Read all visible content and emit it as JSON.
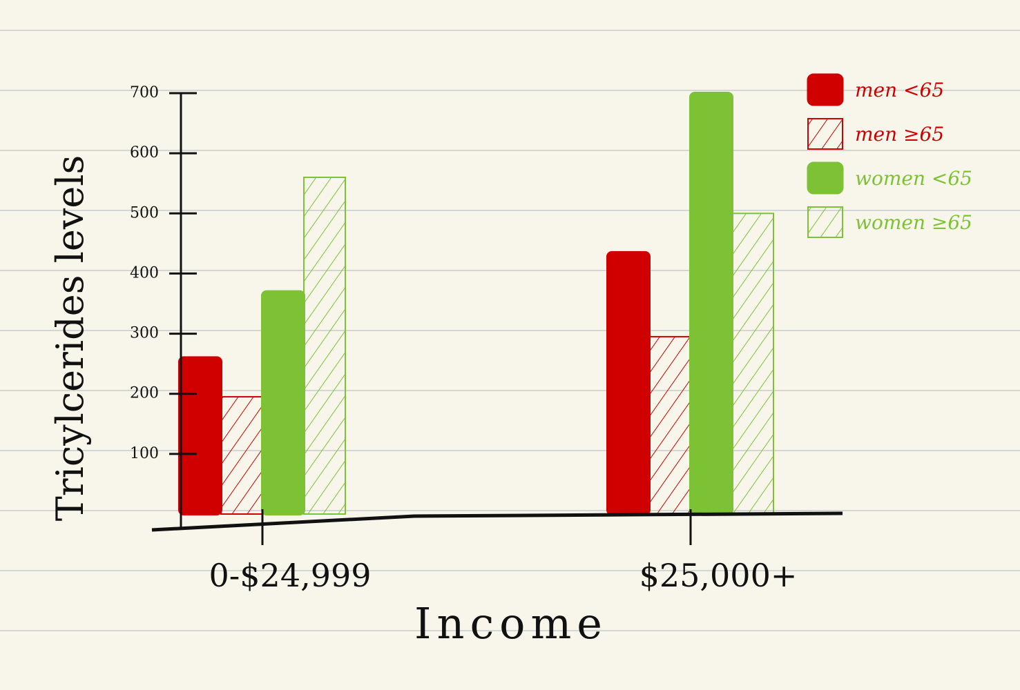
{
  "chart_data": {
    "type": "bar",
    "title": "",
    "xlabel": "Income",
    "ylabel": "Tricylcerides levels",
    "ylim": [
      0,
      700
    ],
    "yticks": [
      100,
      200,
      300,
      400,
      500,
      600,
      700
    ],
    "categories": [
      "0-$24,999",
      "$25,000+"
    ],
    "legend_position": "top-right",
    "grid": false,
    "series": [
      {
        "name": "men <65",
        "values": [
          260,
          435
        ],
        "color": "#d10000",
        "pattern": "solid"
      },
      {
        "name": "men ≥65",
        "values": [
          195,
          295
        ],
        "color": "#d10000",
        "pattern": "hatched"
      },
      {
        "name": "women <65",
        "values": [
          370,
          700
        ],
        "color": "#7dc235",
        "pattern": "solid"
      },
      {
        "name": "women ≥65",
        "values": [
          560,
          500
        ],
        "color": "#7dc235",
        "pattern": "hatched"
      }
    ]
  }
}
